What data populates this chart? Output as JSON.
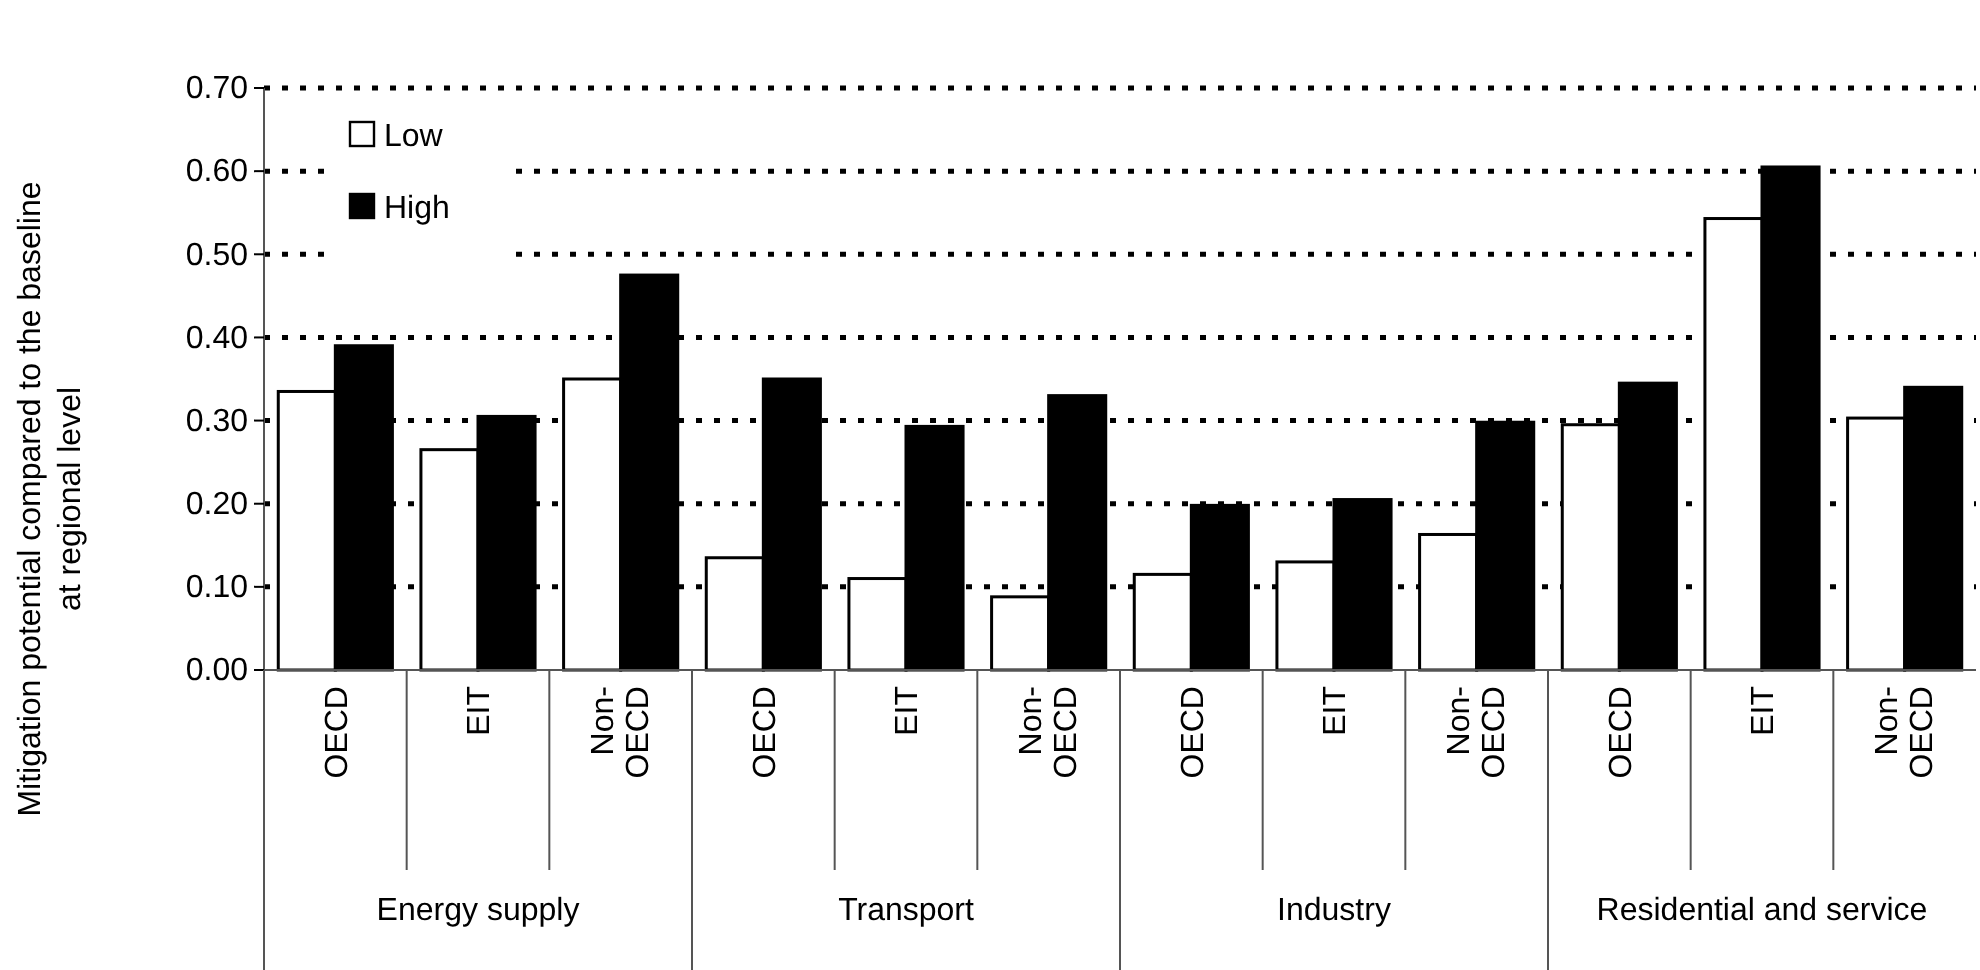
{
  "chart_data": {
    "type": "bar",
    "ylabel": "Mitigation potential compared to the baseline at regional level",
    "categories": [
      "OECD",
      "EIT",
      "Non-OECD",
      "OECD",
      "EIT",
      "Non-OECD",
      "OECD",
      "EIT",
      "Non-OECD",
      "OECD",
      "EIT",
      "Non-OECD"
    ],
    "annotations": [
      "Energy supply",
      "Transport",
      "Industry",
      "Residential and service"
    ],
    "series": [
      {
        "name": "Low",
        "color": "#ffffff",
        "values": [
          0.335,
          0.265,
          0.35,
          0.135,
          0.11,
          0.088,
          0.115,
          0.13,
          0.163,
          0.295,
          0.543,
          0.303
        ]
      },
      {
        "name": "High",
        "color": "#000000",
        "values": [
          0.39,
          0.305,
          0.475,
          0.35,
          0.293,
          0.33,
          0.198,
          0.205,
          0.298,
          0.345,
          0.605,
          0.34
        ]
      }
    ],
    "ylim": [
      0,
      0.7
    ],
    "yticks": [
      {
        "value": 0,
        "label": "0.00"
      },
      {
        "value": 0.1,
        "label": "0.10"
      },
      {
        "value": 0.2,
        "label": "0.20"
      },
      {
        "value": 0.3,
        "label": "0.30"
      },
      {
        "value": 0.4,
        "label": "0.40"
      },
      {
        "value": 0.5,
        "label": "0.50"
      },
      {
        "value": 0.6,
        "label": "0.60"
      },
      {
        "value": 0.7,
        "label": "0.70"
      }
    ],
    "grid": "y",
    "legend": "top left"
  }
}
